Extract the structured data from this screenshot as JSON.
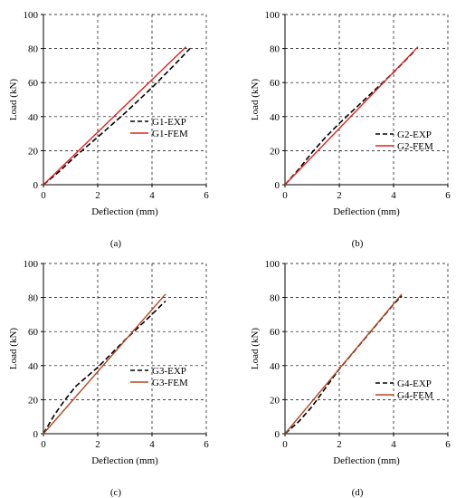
{
  "chart_data": [
    {
      "type": "line",
      "panel_label": "(a)",
      "xlabel": "Deflection (mm)",
      "ylabel": "Load (kN)",
      "xlim": [
        0,
        6
      ],
      "ylim": [
        0,
        100
      ],
      "xticks": [
        0,
        2,
        4,
        6
      ],
      "yticks": [
        0,
        20,
        40,
        60,
        80,
        100
      ],
      "grid": true,
      "legend": "center-right",
      "series": [
        {
          "name": "G1-EXP",
          "style": "dashed",
          "color": "#000000",
          "x": [
            0,
            0.6,
            1.2,
            2.0,
            3.0,
            4.0,
            4.8,
            5.4
          ],
          "y": [
            0,
            8,
            17,
            28,
            42,
            57,
            70,
            80
          ]
        },
        {
          "name": "G1-FEM",
          "style": "solid",
          "color": "#e0201e",
          "x": [
            0,
            5.25
          ],
          "y": [
            0,
            81
          ]
        }
      ]
    },
    {
      "type": "line",
      "panel_label": "(b)",
      "xlabel": "Deflection (mm)",
      "ylabel": "Load (kN)",
      "xlim": [
        0,
        6
      ],
      "ylim": [
        0,
        100
      ],
      "xticks": [
        0,
        2,
        4,
        6
      ],
      "yticks": [
        0,
        20,
        40,
        60,
        80,
        100
      ],
      "grid": true,
      "legend": "bottom-right",
      "series": [
        {
          "name": "G2-EXP",
          "style": "dashed",
          "color": "#000000",
          "x": [
            0,
            0.5,
            1.0,
            1.5,
            2.0,
            3.0,
            4.0,
            4.8
          ],
          "y": [
            0,
            9,
            19,
            28,
            36,
            51,
            66,
            79
          ]
        },
        {
          "name": "G2-FEM",
          "style": "solid",
          "color": "#e0201e",
          "x": [
            0,
            4.9
          ],
          "y": [
            0,
            81
          ]
        }
      ]
    },
    {
      "type": "line",
      "panel_label": "(c)",
      "xlabel": "Deflection (mm)",
      "ylabel": "Load (kN)",
      "xlim": [
        0,
        6
      ],
      "ylim": [
        0,
        100
      ],
      "xticks": [
        0,
        2,
        4,
        6
      ],
      "yticks": [
        0,
        20,
        40,
        60,
        80,
        100
      ],
      "grid": true,
      "legend": "center-right",
      "series": [
        {
          "name": "G3-EXP",
          "style": "dashed",
          "color": "#000000",
          "x": [
            0,
            0.4,
            0.8,
            1.2,
            2.0,
            3.0,
            3.8,
            4.5
          ],
          "y": [
            0,
            11,
            20,
            28,
            39,
            55,
            67,
            78
          ]
        },
        {
          "name": "G3-FEM",
          "style": "solid",
          "color": "#b5471f",
          "x": [
            0,
            4.5
          ],
          "y": [
            0,
            82
          ]
        }
      ]
    },
    {
      "type": "line",
      "panel_label": "(d)",
      "xlabel": "Deflection (mm)",
      "ylabel": "Load (kN)",
      "xlim": [
        0,
        6
      ],
      "ylim": [
        0,
        100
      ],
      "xticks": [
        0,
        2,
        4,
        6
      ],
      "yticks": [
        0,
        20,
        40,
        60,
        80,
        100
      ],
      "grid": true,
      "legend": "bottom-right",
      "series": [
        {
          "name": "G4-EXP",
          "style": "dashed",
          "color": "#000000",
          "x": [
            0,
            0.5,
            1.0,
            1.5,
            2.0,
            3.0,
            4.0,
            4.3
          ],
          "y": [
            0,
            7,
            16,
            27,
            38,
            57,
            76,
            81
          ]
        },
        {
          "name": "G4-FEM",
          "style": "solid",
          "color": "#b5471f",
          "x": [
            0,
            4.3
          ],
          "y": [
            0,
            82
          ]
        }
      ]
    }
  ]
}
